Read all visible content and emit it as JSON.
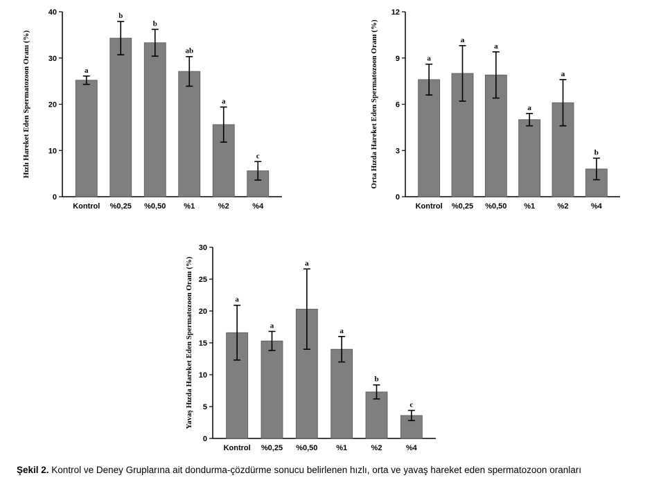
{
  "chart_data": [
    {
      "type": "bar",
      "ylabel": "Hızlı Hareket Eden Spermatozoon Oranı (%)",
      "categories": [
        "Kontrol",
        "%0,25",
        "%0,50",
        "%1",
        "%2",
        "%4"
      ],
      "values": [
        25.2,
        34.3,
        33.3,
        27.1,
        15.6,
        5.6
      ],
      "errors": [
        0.9,
        3.6,
        2.9,
        3.2,
        3.8,
        2.0
      ],
      "significance": [
        "a",
        "b",
        "b",
        "ab",
        "a",
        "c"
      ],
      "ylim": [
        0,
        40
      ],
      "yticks": [
        0,
        10,
        20,
        30,
        40
      ],
      "ytick_labels": [
        "0",
        "10",
        "20",
        "30",
        "40"
      ],
      "grid": false,
      "bar_color": "#7f7f7f"
    },
    {
      "type": "bar",
      "ylabel": "Orta Hızda Hareket Eden Spermatozoon Oranı (%)",
      "categories": [
        "Kontrol",
        "%0,25",
        "%0,50",
        "%1",
        "%2",
        "%4"
      ],
      "values": [
        7.6,
        8.0,
        7.9,
        5.0,
        6.1,
        1.8
      ],
      "errors": [
        1.0,
        1.8,
        1.5,
        0.4,
        1.5,
        0.7
      ],
      "significance": [
        "a",
        "a",
        "a",
        "a",
        "a",
        "b"
      ],
      "ylim": [
        0,
        12
      ],
      "yticks": [
        0,
        3,
        6,
        9,
        12
      ],
      "ytick_labels": [
        "0",
        "3",
        "6",
        "9",
        "12"
      ],
      "grid": false,
      "bar_color": "#7f7f7f"
    },
    {
      "type": "bar",
      "ylabel": "Yavaş Hızda Hareket Eden Spermatozoon Oranı (%)",
      "categories": [
        "Kontrol",
        "%0,25",
        "%0,50",
        "%1",
        "%2",
        "%4"
      ],
      "values": [
        16.6,
        15.3,
        20.3,
        14.0,
        7.3,
        3.6
      ],
      "errors": [
        4.3,
        1.5,
        6.3,
        2.0,
        1.1,
        0.8
      ],
      "significance": [
        "a",
        "a",
        "a",
        "a",
        "b",
        "c"
      ],
      "ylim": [
        0,
        30
      ],
      "yticks": [
        0,
        5,
        10,
        15,
        20,
        25,
        30
      ],
      "ytick_labels": [
        "0",
        "5",
        "10",
        "15",
        "20",
        "25",
        "30"
      ],
      "grid": false,
      "bar_color": "#7f7f7f"
    }
  ],
  "caption": {
    "label": "Şekil 2.",
    "text": " Kontrol ve Deney Gruplarına ait dondurma-çözdürme sonucu belirlenen hızlı, orta ve yavaş hareket eden spermatozoon oranları"
  }
}
